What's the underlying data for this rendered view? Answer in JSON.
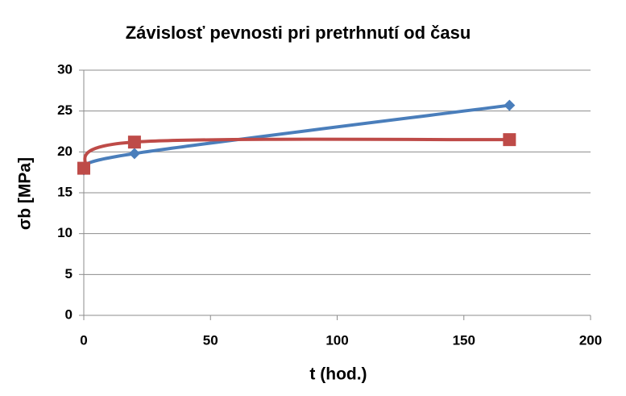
{
  "chart_data": {
    "type": "line",
    "title": "Závislosť pevnosti pri pretrhnutí od času",
    "x_label": "t (hod.)",
    "y_label": "σb [MPa]",
    "x": [
      0,
      20,
      168
    ],
    "series": [
      {
        "color": "#4a7ebb",
        "marker": "diamond",
        "values": [
          17.8,
          19.8,
          25.7
        ]
      },
      {
        "color": "#be4b48",
        "marker": "square",
        "values": [
          18,
          21.2,
          21.5
        ]
      }
    ],
    "xlim": [
      0,
      200
    ],
    "xticks": [
      0,
      50,
      100,
      150,
      200
    ],
    "ylim": [
      0,
      30
    ],
    "yticks": [
      0,
      5,
      10,
      15,
      20,
      25,
      30
    ],
    "grid": true,
    "smooth": true
  }
}
